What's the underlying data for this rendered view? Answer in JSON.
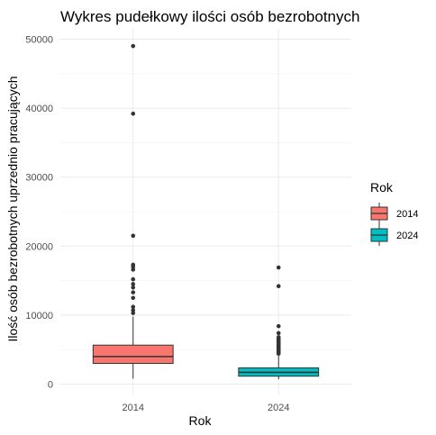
{
  "chart_data": {
    "type": "box",
    "title": "Wykres pudełkowy ilości osób bezrobotnych",
    "xlabel": "Rok",
    "ylabel": "Ilość osób bezrobotnych uprzednio pracujących",
    "ylim": [
      -1500,
      51500
    ],
    "yticks": [
      0,
      10000,
      20000,
      30000,
      40000,
      50000
    ],
    "categories": [
      "2014",
      "2024"
    ],
    "grid": true,
    "legend": {
      "title": "Rok",
      "position": "right"
    },
    "series": [
      {
        "name": "2014",
        "color": "#F8766D",
        "whisker_low": 800,
        "q1": 3000,
        "median": 4000,
        "q3": 5650,
        "whisker_high": 9800,
        "outliers": [
          49000,
          39200,
          21500,
          17300,
          17000,
          16600,
          15200,
          14500,
          14000,
          13300,
          12500,
          11200,
          10700,
          10300
        ]
      },
      {
        "name": "2024",
        "color": "#00BFC4",
        "whisker_low": 700,
        "q1": 1150,
        "median": 1700,
        "q3": 2350,
        "whisker_high": 4100,
        "outliers": [
          16900,
          14200,
          8400,
          7400,
          6800,
          6600,
          6400,
          6200,
          6000,
          5800,
          5600,
          5400,
          5200,
          5000,
          4800,
          4600,
          4400
        ]
      }
    ]
  }
}
